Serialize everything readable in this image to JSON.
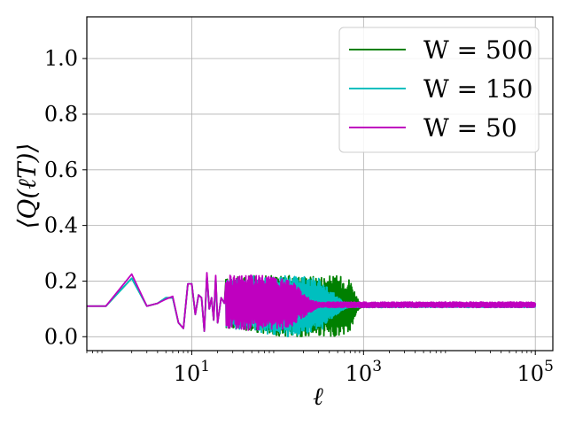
{
  "chart_data": {
    "type": "line",
    "title": "",
    "xlabel": "ℓ",
    "ylabel": "⟨Q(ℓT)⟩",
    "xscale": "log",
    "xlim": [
      0.6,
      160000
    ],
    "ylim": [
      -0.05,
      1.15
    ],
    "grid": true,
    "legend_position": "top-right",
    "x_ticks": [
      {
        "value": 10,
        "label": "10",
        "exp": "1"
      },
      {
        "value": 1000,
        "label": "10",
        "exp": "3"
      },
      {
        "value": 100000,
        "label": "10",
        "exp": "5"
      }
    ],
    "y_ticks": [
      {
        "value": 0.0,
        "label": "0.0"
      },
      {
        "value": 0.2,
        "label": "0.2"
      },
      {
        "value": 0.4,
        "label": "0.4"
      },
      {
        "value": 0.6,
        "label": "0.6"
      },
      {
        "value": 0.8,
        "label": "0.8"
      },
      {
        "value": 1.0,
        "label": "1.0"
      }
    ],
    "series": [
      {
        "name": "W = 500",
        "color": "#008000",
        "points": [
          [
            0.6,
            0.11
          ],
          [
            1,
            0.11
          ],
          [
            2,
            0.21
          ],
          [
            3,
            0.11
          ],
          [
            4,
            0.12
          ],
          [
            5,
            0.14
          ],
          [
            6,
            0.14
          ],
          [
            7,
            0.05
          ],
          [
            8,
            0.03
          ],
          [
            9,
            0.19
          ],
          [
            10,
            0.19
          ],
          [
            11,
            0.08
          ],
          [
            12,
            0.15
          ],
          [
            13,
            0.14
          ],
          [
            14,
            0.02
          ],
          [
            15,
            0.22
          ],
          [
            16,
            0.1
          ],
          [
            17,
            0.14
          ],
          [
            18,
            0.06
          ],
          [
            19,
            0.21
          ],
          [
            20,
            0.05
          ],
          [
            22,
            0.14
          ],
          [
            24,
            0.12
          ]
        ],
        "band": [
          [
            25,
            0.03,
            0.21
          ],
          [
            50,
            0.02,
            0.22
          ],
          [
            100,
            0.0,
            0.22
          ],
          [
            300,
            0.0,
            0.22
          ],
          [
            500,
            0.0,
            0.22
          ],
          [
            700,
            0.01,
            0.21
          ],
          [
            800,
            0.07,
            0.16
          ],
          [
            900,
            0.1,
            0.12
          ],
          [
            1000,
            0.11,
            0.12
          ],
          [
            100000,
            0.11,
            0.12
          ]
        ]
      },
      {
        "name": "W = 150",
        "color": "#00bfbf",
        "points": [
          [
            0.6,
            0.11
          ],
          [
            1,
            0.11
          ],
          [
            2,
            0.21
          ],
          [
            3,
            0.11
          ],
          [
            4,
            0.12
          ],
          [
            5,
            0.14
          ],
          [
            6,
            0.14
          ],
          [
            7,
            0.05
          ],
          [
            8,
            0.03
          ],
          [
            9,
            0.19
          ],
          [
            10,
            0.19
          ],
          [
            11,
            0.08
          ],
          [
            12,
            0.15
          ],
          [
            13,
            0.14
          ],
          [
            14,
            0.02
          ],
          [
            15,
            0.22
          ],
          [
            16,
            0.1
          ],
          [
            17,
            0.14
          ],
          [
            18,
            0.06
          ],
          [
            19,
            0.21
          ],
          [
            20,
            0.05
          ],
          [
            22,
            0.14
          ],
          [
            24,
            0.12
          ]
        ],
        "band": [
          [
            25,
            0.03,
            0.21
          ],
          [
            50,
            0.02,
            0.22
          ],
          [
            100,
            0.0,
            0.22
          ],
          [
            200,
            0.0,
            0.22
          ],
          [
            300,
            0.01,
            0.21
          ],
          [
            450,
            0.07,
            0.16
          ],
          [
            600,
            0.1,
            0.12
          ],
          [
            700,
            0.105,
            0.12
          ],
          [
            100000,
            0.105,
            0.12
          ]
        ]
      },
      {
        "name": "W = 50",
        "color": "#bf00bf",
        "points": [
          [
            0.6,
            0.11
          ],
          [
            1,
            0.11
          ],
          [
            2,
            0.225
          ],
          [
            3,
            0.11
          ],
          [
            4,
            0.12
          ],
          [
            5,
            0.135
          ],
          [
            6,
            0.145
          ],
          [
            7,
            0.05
          ],
          [
            8,
            0.03
          ],
          [
            9,
            0.19
          ],
          [
            10,
            0.19
          ],
          [
            11,
            0.08
          ],
          [
            12,
            0.15
          ],
          [
            13,
            0.14
          ],
          [
            14,
            0.02
          ],
          [
            15,
            0.23
          ],
          [
            16,
            0.1
          ],
          [
            17,
            0.14
          ],
          [
            18,
            0.06
          ],
          [
            19,
            0.22
          ],
          [
            20,
            0.05
          ],
          [
            22,
            0.14
          ],
          [
            24,
            0.12
          ]
        ],
        "band": [
          [
            25,
            0.03,
            0.22
          ],
          [
            50,
            0.02,
            0.23
          ],
          [
            100,
            0.02,
            0.21
          ],
          [
            150,
            0.04,
            0.2
          ],
          [
            200,
            0.07,
            0.16
          ],
          [
            250,
            0.09,
            0.13
          ],
          [
            300,
            0.105,
            0.125
          ],
          [
            100000,
            0.105,
            0.125
          ]
        ]
      }
    ]
  }
}
